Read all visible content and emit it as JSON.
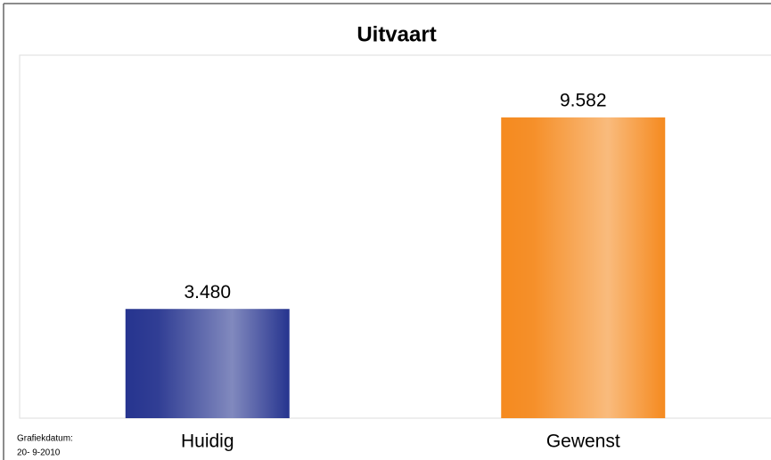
{
  "chart_data": {
    "type": "bar",
    "title": "Uitvaart",
    "categories": [
      "Huidig",
      "Gewenst"
    ],
    "values": [
      3480,
      9582
    ],
    "value_labels": [
      "3.480",
      "9.582"
    ],
    "colors": [
      "#26348f",
      "#f58a1f"
    ],
    "annotations": [
      "Grafiekdatum:",
      "20- 9-2010"
    ]
  }
}
